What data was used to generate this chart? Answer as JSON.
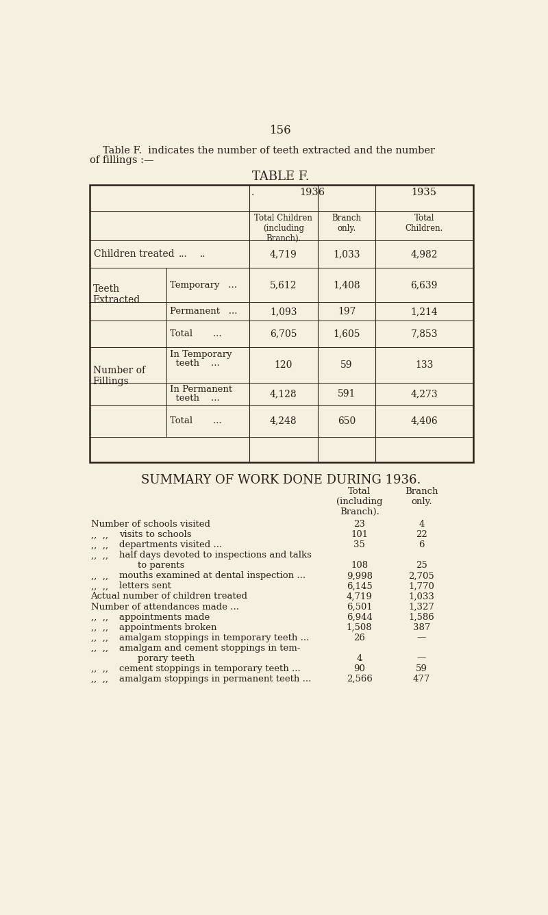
{
  "bg_color": "#f5f0e0",
  "text_color": "#2a2018",
  "page_number": "156",
  "intro_line1": "Table F.  indicates the number of teeth extracted and the number",
  "intro_line2": "of fillings :—",
  "table_title": "TABLE F.",
  "year1936": "1936",
  "year1935": "1935",
  "subhdr1": "Total Children\n(including\nBranch).",
  "subhdr2": "Branch\nonly.",
  "subhdr3": "Total\nChildren.",
  "row_children_label": "Children treated",
  "row_children_dots": "...      ..",
  "row_children_v1": "4,719",
  "row_children_v2": "1,033",
  "row_children_v3": "4,982",
  "te_label": "Teeth\nExtracted",
  "te_temp": "Temporary   ...",
  "te_perm": "Permanent   ...",
  "te_total": "Total       ...",
  "te_temp_v1": "5,612",
  "te_temp_v2": "1,408",
  "te_temp_v3": "6,639",
  "te_perm_v1": "1,093",
  "te_perm_v2": "197",
  "te_perm_v3": "1,214",
  "te_tot_v1": "6,705",
  "te_tot_v2": "1,605",
  "te_tot_v3": "7,853",
  "nf_label": "Number of\nFillings",
  "nf_temp": "In Temporary\n  teeth    ...",
  "nf_perm": "In Permanent\n  teeth    ...",
  "nf_total": "Total       ...",
  "nf_temp_v1": "120",
  "nf_temp_v2": "59",
  "nf_temp_v3": "133",
  "nf_perm_v1": "4,128",
  "nf_perm_v2": "591",
  "nf_perm_v3": "4,273",
  "nf_tot_v1": "4,248",
  "nf_tot_v2": "650",
  "nf_tot_v3": "4,406",
  "summary_title": "SUMMARY OF WORK DONE DURING 1936.",
  "sum_hdr1": "Total\n(including\nBranch).",
  "sum_hdr2": "Branch\nonly.",
  "summary_rows": [
    {
      "label": "Number of schools visited",
      "indent": 0,
      "dots": "...          ...",
      "v1": "23",
      "v2": "4",
      "two_line": false
    },
    {
      "label": "visits to schools",
      "indent": 1,
      "dots": "...          ...",
      "v1": "101",
      "v2": "22",
      "two_line": false
    },
    {
      "label": "departments visited ...",
      "indent": 1,
      "dots": "...          ...",
      "v1": "35",
      "v2": "6",
      "two_line": false
    },
    {
      "label": "half days devoted to inspections and talks",
      "indent": 1,
      "dots": "",
      "v1": "",
      "v2": "",
      "two_line": false
    },
    {
      "label": "to parents",
      "indent": 2,
      "dots": "...          ...",
      "v1": "108",
      "v2": "25",
      "two_line": false
    },
    {
      "label": "mouths examined at dental inspection ...",
      "indent": 1,
      "dots": "",
      "v1": "9,998",
      "v2": "2,705",
      "two_line": false
    },
    {
      "label": "letters sent",
      "indent": 1,
      "dots": "...          ...",
      "v1": "6,145",
      "v2": "1,770",
      "two_line": false
    },
    {
      "label": "Actual number of children treated",
      "indent": 0,
      "dots": "...          ...",
      "v1": "4,719",
      "v2": "1,033",
      "two_line": false
    },
    {
      "label": "Number of attendances made ...",
      "indent": 0,
      "dots": "...          ...",
      "v1": "6,501",
      "v2": "1,327",
      "two_line": false
    },
    {
      "label": "appointments made",
      "indent": 1,
      "dots": "...          ...",
      "v1": "6,944",
      "v2": "1,586",
      "two_line": false
    },
    {
      "label": "appointments broken",
      "indent": 1,
      "dots": "...          ...",
      "v1": "1,508",
      "v2": "387",
      "two_line": false
    },
    {
      "label": "amalgam stoppings in temporary teeth ...",
      "indent": 1,
      "dots": "",
      "v1": "26",
      "v2": "—",
      "two_line": false
    },
    {
      "label": "amalgam and cement stoppings in tem-",
      "indent": 1,
      "dots": "",
      "v1": "",
      "v2": "",
      "two_line": false
    },
    {
      "label": "porary teeth",
      "indent": 2,
      "dots": "...          ...",
      "v1": "4",
      "v2": "—",
      "two_line": false
    },
    {
      "label": "cement stoppings in temporary teeth ...",
      "indent": 1,
      "dots": "",
      "v1": "90",
      "v2": "59",
      "two_line": false
    },
    {
      "label": "amalgam stoppings in permanent teeth ...",
      "indent": 1,
      "dots": "",
      "v1": "2,566",
      "v2": "477",
      "two_line": false
    }
  ]
}
